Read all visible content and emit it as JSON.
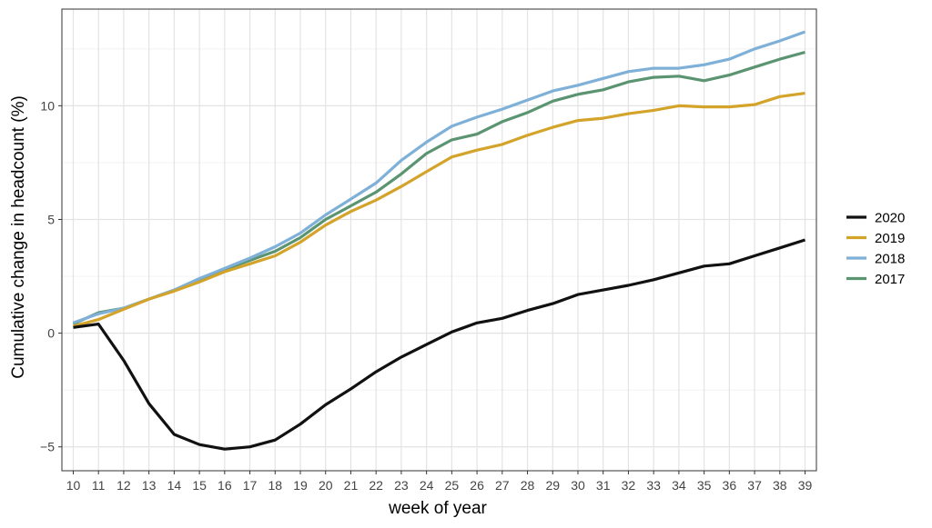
{
  "chart_data": {
    "type": "line",
    "title": "",
    "xlabel": "week of year",
    "ylabel": "Cumulative change in headcount (%)",
    "x": [
      10,
      11,
      12,
      13,
      14,
      15,
      16,
      17,
      18,
      19,
      20,
      21,
      22,
      23,
      24,
      25,
      26,
      27,
      28,
      29,
      30,
      31,
      32,
      33,
      34,
      35,
      36,
      37,
      38,
      39
    ],
    "xlim": [
      9.55,
      39.45
    ],
    "ylim": [
      -6.05,
      14.25
    ],
    "yticks": [
      -5,
      0,
      5,
      10
    ],
    "grid": true,
    "legend_position": "right",
    "series": [
      {
        "name": "2017",
        "color": "#5b9470",
        "values": [
          0.4,
          0.9,
          1.1,
          1.5,
          1.9,
          2.35,
          2.8,
          3.2,
          3.6,
          4.2,
          5.0,
          5.6,
          6.2,
          7.0,
          7.9,
          8.5,
          8.75,
          9.3,
          9.7,
          10.2,
          10.5,
          10.7,
          11.05,
          11.25,
          11.3,
          11.1,
          11.35,
          11.7,
          12.05,
          12.35
        ]
      },
      {
        "name": "2018",
        "color": "#7fb0d8",
        "values": [
          0.45,
          0.85,
          1.1,
          1.5,
          1.9,
          2.4,
          2.85,
          3.3,
          3.8,
          4.4,
          5.2,
          5.9,
          6.6,
          7.6,
          8.4,
          9.1,
          9.5,
          9.85,
          10.25,
          10.65,
          10.9,
          11.2,
          11.5,
          11.65,
          11.65,
          11.8,
          12.05,
          12.5,
          12.85,
          13.25
        ]
      },
      {
        "name": "2019",
        "color": "#d4a32a",
        "values": [
          0.3,
          0.6,
          1.05,
          1.5,
          1.85,
          2.25,
          2.7,
          3.05,
          3.4,
          4.0,
          4.75,
          5.35,
          5.85,
          6.45,
          7.1,
          7.75,
          8.05,
          8.3,
          8.7,
          9.05,
          9.35,
          9.45,
          9.65,
          9.8,
          10.0,
          9.95,
          9.95,
          10.05,
          10.4,
          10.55
        ]
      },
      {
        "name": "2020",
        "color": "#111111",
        "values": [
          0.25,
          0.4,
          -1.2,
          -3.1,
          -4.45,
          -4.9,
          -5.1,
          -5.0,
          -4.7,
          -4.0,
          -3.15,
          -2.45,
          -1.7,
          -1.05,
          -0.5,
          0.05,
          0.45,
          0.65,
          1.0,
          1.3,
          1.7,
          1.9,
          2.1,
          2.35,
          2.65,
          2.95,
          3.05,
          3.4,
          3.75,
          4.1
        ]
      }
    ],
    "legend_order": [
      "2020",
      "2019",
      "2018",
      "2017"
    ]
  }
}
